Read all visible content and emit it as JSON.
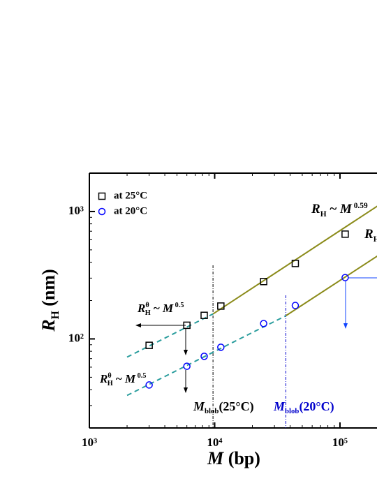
{
  "chart_data": {
    "type": "scatter",
    "x_label": [
      {
        "text": "M",
        "style": "italic"
      },
      {
        "text": " (bp)",
        "style": "normal"
      }
    ],
    "y_label": [
      {
        "text": "R",
        "style": "italic"
      },
      {
        "text": "H",
        "style": "sub"
      },
      {
        "text": " (nm)",
        "style": "normal"
      }
    ],
    "log_x": true,
    "log_y": true,
    "xlim": [
      1000,
      200000
    ],
    "ylim": [
      20,
      2000
    ],
    "xticks": [
      {
        "value": 1000,
        "label": "10³"
      },
      {
        "value": 10000,
        "label": "10⁴"
      },
      {
        "value": 100000,
        "label": "10⁵"
      }
    ],
    "yticks": [
      {
        "value": 100,
        "label": "10²"
      },
      {
        "value": 1000,
        "label": "10³"
      }
    ],
    "legend": "upper left",
    "series": [
      {
        "name": "at 25°C",
        "marker": "square",
        "color": "#000000",
        "x": [
          3000,
          6000,
          8250,
          11200,
          24600,
          44000,
          110000
        ],
        "values": [
          89,
          128,
          153,
          181,
          282,
          391,
          664
        ]
      },
      {
        "name": "at 20°C",
        "marker": "circle",
        "color": "#0000ff",
        "x": [
          3000,
          6000,
          8250,
          11200,
          24600,
          44000,
          110000
        ],
        "values": [
          43.5,
          61,
          73,
          86,
          132,
          183,
          303
        ]
      }
    ],
    "fit_lines": [
      {
        "dash": true,
        "color": "#2a9d9d",
        "x": [
          2000,
          9700
        ],
        "values": [
          72,
          157
        ]
      },
      {
        "dash": false,
        "color": "#8b8b1a",
        "x": [
          9700,
          200000
        ],
        "values": [
          157,
          1107
        ]
      },
      {
        "dash": true,
        "color": "#2a9d9d",
        "x": [
          2000,
          37000
        ],
        "values": [
          36,
          152
        ]
      },
      {
        "dash": false,
        "color": "#8b8b1a",
        "x": [
          37000,
          200000
        ],
        "values": [
          152,
          449
        ]
      }
    ],
    "markers": [
      {
        "x": 9700,
        "color": "#000000"
      },
      {
        "x": 37000,
        "color": "#0000cc"
      }
    ],
    "annotations": [
      {
        "color": "#000000",
        "segments": [
          {
            "text": "R",
            "style": "italic"
          },
          {
            "text": "H",
            "style": "sub"
          },
          {
            "text": " ~ ",
            "style": "normal"
          },
          {
            "text": "M",
            "style": "italic"
          },
          {
            "text": " 0.59",
            "style": "super"
          }
        ]
      },
      {
        "color": "#000000",
        "segments": [
          {
            "text": "R",
            "style": "italic"
          },
          {
            "text": "H",
            "style": "sub"
          }
        ]
      },
      {
        "color": "#000000",
        "segments": [
          {
            "text": "R",
            "style": "italic"
          },
          {
            "text": "θ",
            "style": "super"
          },
          {
            "text": "H",
            "style": "sub"
          },
          {
            "text": " ~ ",
            "style": "normal"
          },
          {
            "text": "M",
            "style": "italic"
          },
          {
            "text": " 0.5",
            "style": "super"
          }
        ]
      },
      {
        "color": "#000000",
        "segments": [
          {
            "text": "R",
            "style": "italic"
          },
          {
            "text": "θ",
            "style": "super"
          },
          {
            "text": "H",
            "style": "sub"
          },
          {
            "text": " ~ ",
            "style": "normal"
          },
          {
            "text": "M",
            "style": "italic"
          },
          {
            "text": " 0.5",
            "style": "super"
          }
        ]
      },
      {
        "color": "#000000",
        "segments": [
          {
            "text": "M",
            "style": "italic"
          },
          {
            "text": "blob",
            "style": "sub"
          },
          {
            "text": "(25°C)",
            "style": "normal"
          }
        ]
      },
      {
        "color": "#0000cc",
        "segments": [
          {
            "text": "M",
            "style": "italic"
          },
          {
            "text": "blob",
            "style": "sub"
          },
          {
            "text": "(20°C)",
            "style": "normal"
          }
        ]
      }
    ]
  }
}
